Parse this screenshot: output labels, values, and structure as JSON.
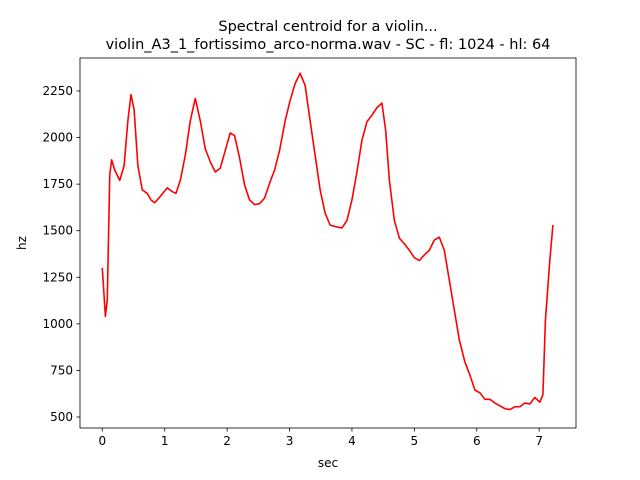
{
  "chart_data": {
    "type": "line",
    "title": [
      "Spectral centroid for a violin...",
      "violin_A3_1_fortissimo_arco-norma.wav - SC - fl: 1024 - hl: 64"
    ],
    "xlabel": "sec",
    "ylabel": "hz",
    "x": [
      0,
      0.05,
      0.08,
      0.12,
      0.15,
      0.2,
      0.28,
      0.35,
      0.41,
      0.46,
      0.51,
      0.57,
      0.64,
      0.72,
      0.78,
      0.84,
      0.92,
      1.04,
      1.12,
      1.18,
      1.25,
      1.33,
      1.41,
      1.49,
      1.57,
      1.65,
      1.73,
      1.81,
      1.89,
      1.97,
      2.05,
      2.12,
      2.2,
      2.28,
      2.36,
      2.44,
      2.52,
      2.6,
      2.68,
      2.76,
      2.84,
      2.93,
      3.01,
      3.09,
      3.17,
      3.25,
      3.33,
      3.41,
      3.49,
      3.57,
      3.65,
      3.76,
      3.84,
      3.92,
      4.0,
      4.08,
      4.16,
      4.24,
      4.32,
      4.4,
      4.48,
      4.54,
      4.6,
      4.68,
      4.76,
      4.84,
      4.92,
      5.0,
      5.08,
      5.16,
      5.24,
      5.32,
      5.4,
      5.48,
      5.56,
      5.64,
      5.72,
      5.81,
      5.89,
      5.97,
      6.05,
      6.13,
      6.21,
      6.29,
      6.37,
      6.45,
      6.53,
      6.61,
      6.69,
      6.77,
      6.85,
      6.93,
      7.01,
      7.06,
      7.1,
      7.17,
      7.22
    ],
    "series": [
      {
        "color": "#ff0000",
        "values": [
          1300,
          1040,
          1130,
          1800,
          1880,
          1825,
          1770,
          1850,
          2090,
          2230,
          2150,
          1850,
          1720,
          1700,
          1665,
          1650,
          1680,
          1730,
          1710,
          1700,
          1770,
          1905,
          2090,
          2210,
          2090,
          1940,
          1870,
          1815,
          1835,
          1930,
          2025,
          2010,
          1890,
          1745,
          1665,
          1640,
          1645,
          1675,
          1755,
          1825,
          1930,
          2090,
          2200,
          2290,
          2345,
          2280,
          2090,
          1905,
          1720,
          1595,
          1530,
          1520,
          1515,
          1555,
          1665,
          1815,
          1985,
          2085,
          2120,
          2160,
          2185,
          2040,
          1770,
          1555,
          1460,
          1430,
          1395,
          1355,
          1340,
          1370,
          1395,
          1450,
          1465,
          1395,
          1235,
          1075,
          915,
          795,
          725,
          645,
          630,
          595,
          595,
          575,
          560,
          545,
          540,
          555,
          555,
          575,
          570,
          605,
          580,
          620,
          1020,
          1340,
          1530
        ]
      }
    ],
    "xlim": [
      -0.357,
      7.59
    ],
    "ylim": [
      441,
      2427
    ],
    "xticks": [
      0,
      1,
      2,
      3,
      4,
      5,
      6,
      7
    ],
    "yticks": [
      500,
      750,
      1000,
      1250,
      1500,
      1750,
      2000,
      2250
    ]
  }
}
